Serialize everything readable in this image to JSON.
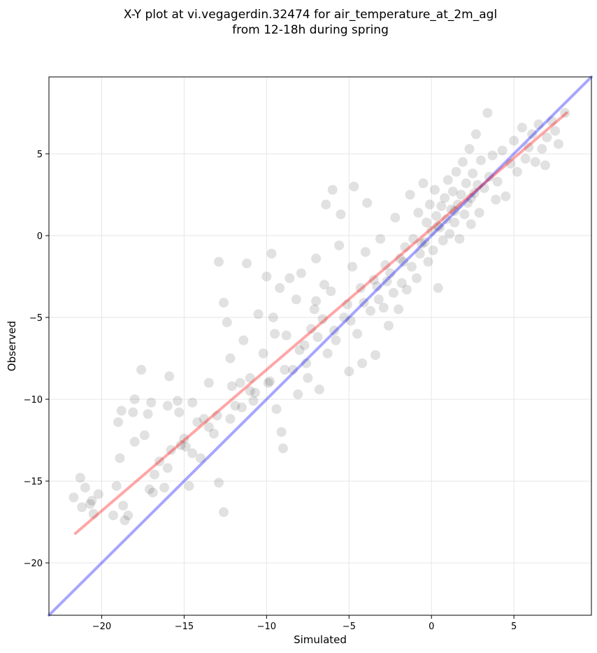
{
  "chart_data": {
    "type": "scatter",
    "title": "X-Y plot at vi.vegagerdin.32474 for air_temperature_at_2m_agl",
    "subtitle": "from 12-18h during spring",
    "xlabel": "Simulated",
    "ylabel": "Observed",
    "xlim": [
      -23.2,
      9.7
    ],
    "ylim": [
      -23.2,
      9.7
    ],
    "xticks": [
      -20,
      -15,
      -10,
      -5,
      0,
      5
    ],
    "yticks": [
      -20,
      -15,
      -10,
      -5,
      0,
      5
    ],
    "tick_labels": {
      "x": [
        "−20",
        "−15",
        "−10",
        "−5",
        "0",
        "5"
      ],
      "y": [
        "−20",
        "−15",
        "−10",
        "−5",
        "0",
        "5"
      ]
    },
    "grid": true,
    "point_color": "#000000",
    "point_opacity": 0.09,
    "lines": [
      {
        "kind": "identity",
        "color": "#0000ff",
        "x": [
          -23.2,
          9.7
        ],
        "y": [
          -23.2,
          9.7
        ]
      },
      {
        "kind": "linear-fit",
        "color": "#ff0000",
        "x": [
          -21.6,
          8.2
        ],
        "y": [
          -18.2,
          7.5
        ]
      }
    ],
    "points": [
      [
        -21.7,
        -16.0
      ],
      [
        -21.3,
        -14.8
      ],
      [
        -21.0,
        -15.4
      ],
      [
        -20.7,
        -16.4
      ],
      [
        -20.5,
        -17.0
      ],
      [
        -20.2,
        -15.8
      ],
      [
        -21.2,
        -16.6
      ],
      [
        -20.6,
        -16.2
      ],
      [
        -19.1,
        -15.3
      ],
      [
        -18.7,
        -16.5
      ],
      [
        -18.4,
        -17.1
      ],
      [
        -18.6,
        -17.4
      ],
      [
        -19.3,
        -17.1
      ],
      [
        -19.0,
        -11.4
      ],
      [
        -18.8,
        -10.7
      ],
      [
        -18.9,
        -13.6
      ],
      [
        -18.0,
        -12.6
      ],
      [
        -18.0,
        -10.0
      ],
      [
        -18.1,
        -10.8
      ],
      [
        -17.6,
        -8.2
      ],
      [
        -17.2,
        -10.9
      ],
      [
        -17.0,
        -10.2
      ],
      [
        -16.9,
        -15.7
      ],
      [
        -17.1,
        -15.5
      ],
      [
        -16.8,
        -14.6
      ],
      [
        -16.5,
        -13.8
      ],
      [
        -16.2,
        -15.4
      ],
      [
        -16.0,
        -14.2
      ],
      [
        -15.9,
        -8.6
      ],
      [
        -15.8,
        -13.1
      ],
      [
        -15.4,
        -10.1
      ],
      [
        -15.3,
        -10.8
      ],
      [
        -15.2,
        -12.8
      ],
      [
        -15.0,
        -12.4
      ],
      [
        -14.9,
        -12.9
      ],
      [
        -14.7,
        -15.3
      ],
      [
        -14.5,
        -13.3
      ],
      [
        -14.2,
        -11.4
      ],
      [
        -14.0,
        -13.6
      ],
      [
        -13.8,
        -11.2
      ],
      [
        -13.5,
        -11.7
      ],
      [
        -13.2,
        -12.1
      ],
      [
        -13.0,
        -11.0
      ],
      [
        -12.9,
        -15.1
      ],
      [
        -12.9,
        -1.6
      ],
      [
        -12.6,
        -4.1
      ],
      [
        -12.6,
        -16.9
      ],
      [
        -12.4,
        -5.3
      ],
      [
        -12.2,
        -7.5
      ],
      [
        -12.1,
        -9.2
      ],
      [
        -11.9,
        -10.4
      ],
      [
        -11.6,
        -9.0
      ],
      [
        -11.4,
        -6.4
      ],
      [
        -11.2,
        -1.7
      ],
      [
        -11.0,
        -8.7
      ],
      [
        -10.8,
        -10.1
      ],
      [
        -10.5,
        -4.8
      ],
      [
        -10.2,
        -7.2
      ],
      [
        -10.0,
        -2.5
      ],
      [
        -9.9,
        -9.0
      ],
      [
        -9.7,
        -1.1
      ],
      [
        -9.6,
        -5.0
      ],
      [
        -9.4,
        -10.6
      ],
      [
        -9.2,
        -3.2
      ],
      [
        -9.1,
        -12.0
      ],
      [
        -9.0,
        -13.0
      ],
      [
        -8.8,
        -6.1
      ],
      [
        -8.6,
        -2.6
      ],
      [
        -8.4,
        -8.2
      ],
      [
        -8.2,
        -3.9
      ],
      [
        -8.1,
        -9.7
      ],
      [
        -7.9,
        -2.3
      ],
      [
        -7.7,
        -6.7
      ],
      [
        -7.5,
        -8.7
      ],
      [
        -7.3,
        -5.7
      ],
      [
        -7.1,
        -4.5
      ],
      [
        -7.0,
        -1.4
      ],
      [
        -6.8,
        -9.4
      ],
      [
        -6.6,
        -5.1
      ],
      [
        -6.4,
        1.9
      ],
      [
        -6.3,
        -7.2
      ],
      [
        -6.1,
        -3.4
      ],
      [
        -6.0,
        2.8
      ],
      [
        -5.8,
        -6.4
      ],
      [
        -5.6,
        -0.6
      ],
      [
        -5.5,
        1.3
      ],
      [
        -5.3,
        -5.0
      ],
      [
        -5.1,
        -4.2
      ],
      [
        -5.0,
        -8.3
      ],
      [
        -4.8,
        -1.9
      ],
      [
        -4.7,
        3.0
      ],
      [
        -4.5,
        -6.0
      ],
      [
        -4.3,
        -3.2
      ],
      [
        -4.2,
        -7.8
      ],
      [
        -4.0,
        -1.0
      ],
      [
        -3.9,
        2.0
      ],
      [
        -3.7,
        -4.6
      ],
      [
        -3.5,
        -2.7
      ],
      [
        -3.4,
        -7.3
      ],
      [
        -3.2,
        -3.9
      ],
      [
        -3.1,
        -0.2
      ],
      [
        -2.9,
        -4.4
      ],
      [
        -2.8,
        -1.8
      ],
      [
        -2.6,
        -5.5
      ],
      [
        -2.5,
        -2.3
      ],
      [
        -2.3,
        -3.5
      ],
      [
        -2.2,
        1.1
      ],
      [
        -2.0,
        -4.5
      ],
      [
        -1.9,
        -1.4
      ],
      [
        -1.8,
        -2.9
      ],
      [
        -1.6,
        -0.7
      ],
      [
        -1.5,
        -3.3
      ],
      [
        -1.3,
        2.5
      ],
      [
        -1.2,
        -1.9
      ],
      [
        -1.1,
        -0.2
      ],
      [
        -0.9,
        -2.6
      ],
      [
        -0.8,
        1.4
      ],
      [
        -0.7,
        -1.1
      ],
      [
        -0.5,
        3.2
      ],
      [
        -0.4,
        -0.4
      ],
      [
        -0.3,
        0.8
      ],
      [
        -0.2,
        -1.6
      ],
      [
        -0.1,
        1.9
      ],
      [
        0.0,
        0.3
      ],
      [
        0.1,
        -0.9
      ],
      [
        0.2,
        2.8
      ],
      [
        0.3,
        1.2
      ],
      [
        0.4,
        -3.2
      ],
      [
        0.5,
        0.5
      ],
      [
        0.6,
        1.8
      ],
      [
        0.7,
        -0.3
      ],
      [
        0.8,
        2.3
      ],
      [
        0.9,
        1.0
      ],
      [
        1.0,
        3.4
      ],
      [
        1.1,
        0.1
      ],
      [
        1.2,
        1.6
      ],
      [
        1.3,
        2.7
      ],
      [
        1.4,
        0.8
      ],
      [
        1.5,
        3.9
      ],
      [
        1.6,
        1.9
      ],
      [
        1.7,
        -0.2
      ],
      [
        1.8,
        2.5
      ],
      [
        1.9,
        4.5
      ],
      [
        2.0,
        1.3
      ],
      [
        2.1,
        3.2
      ],
      [
        2.2,
        2.0
      ],
      [
        2.3,
        5.3
      ],
      [
        2.4,
        0.7
      ],
      [
        2.5,
        3.8
      ],
      [
        2.6,
        2.6
      ],
      [
        2.7,
        6.2
      ],
      [
        2.8,
        3.1
      ],
      [
        2.9,
        1.4
      ],
      [
        3.0,
        4.6
      ],
      [
        3.2,
        2.9
      ],
      [
        3.4,
        7.5
      ],
      [
        3.5,
        3.6
      ],
      [
        3.7,
        4.9
      ],
      [
        3.9,
        2.2
      ],
      [
        4.0,
        3.3
      ],
      [
        4.3,
        5.2
      ],
      [
        4.5,
        2.4
      ],
      [
        4.8,
        4.4
      ],
      [
        5.0,
        5.8
      ],
      [
        5.2,
        3.9
      ],
      [
        5.5,
        6.6
      ],
      [
        5.7,
        4.7
      ],
      [
        5.9,
        5.4
      ],
      [
        6.1,
        6.2
      ],
      [
        6.3,
        4.5
      ],
      [
        6.5,
        6.8
      ],
      [
        6.7,
        5.3
      ],
      [
        6.9,
        4.3
      ],
      [
        7.0,
        6.0
      ],
      [
        7.3,
        7.0
      ],
      [
        7.5,
        6.4
      ],
      [
        7.7,
        5.6
      ],
      [
        8.1,
        7.5
      ],
      [
        -7.0,
        -4.0
      ],
      [
        -6.5,
        -3.0
      ],
      [
        -9.5,
        -6.0
      ],
      [
        -11.0,
        -9.5
      ],
      [
        -13.5,
        -9.0
      ],
      [
        -14.5,
        -10.2
      ],
      [
        -16.0,
        -10.4
      ],
      [
        -17.4,
        -12.2
      ],
      [
        -8.0,
        -7.0
      ],
      [
        -7.6,
        -7.8
      ],
      [
        -6.9,
        -6.2
      ],
      [
        -5.9,
        -5.8
      ],
      [
        -4.9,
        -5.2
      ],
      [
        -4.1,
        -4.1
      ],
      [
        -3.3,
        -3.1
      ],
      [
        -2.7,
        -2.8
      ],
      [
        -1.7,
        -1.6
      ],
      [
        -0.6,
        -0.5
      ],
      [
        0.4,
        0.6
      ],
      [
        1.4,
        1.5
      ],
      [
        2.4,
        2.3
      ],
      [
        -12.2,
        -11.2
      ],
      [
        -11.5,
        -10.5
      ],
      [
        -10.7,
        -9.6
      ],
      [
        -9.8,
        -8.9
      ],
      [
        -8.9,
        -8.2
      ]
    ]
  }
}
